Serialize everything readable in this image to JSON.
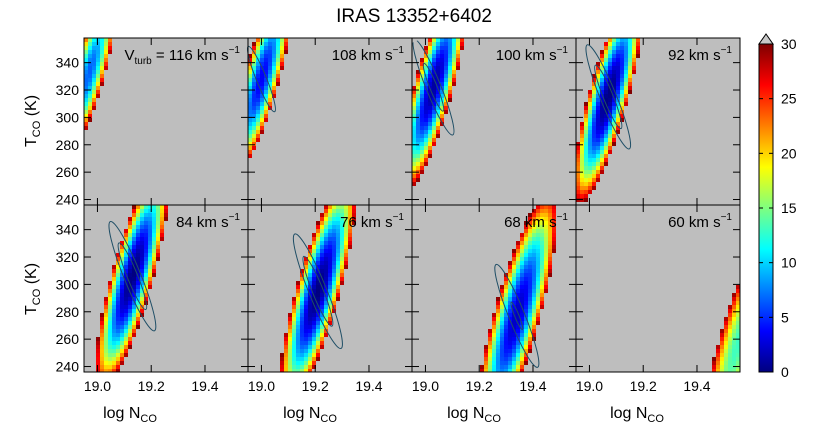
{
  "title": "IRAS 13352+6402",
  "chart_data": {
    "type": "heatmap",
    "title": "IRAS 13352+6402",
    "xlabel": {
      "main": "log N",
      "sub": "CO"
    },
    "ylabel": {
      "main": "T",
      "sub": "CO",
      "unit": " (K)"
    },
    "xlim": [
      18.95,
      19.56
    ],
    "ylim": [
      236,
      358
    ],
    "xticks": [
      19.0,
      19.2,
      19.4
    ],
    "xtick_labels": [
      "19.0",
      "19.2",
      "19.4"
    ],
    "yticks": [
      240,
      260,
      280,
      300,
      320,
      340
    ],
    "ytick_labels": [
      "240",
      "260",
      "280",
      "300",
      "320",
      "340"
    ],
    "grid": false,
    "colorbar": {
      "range": [
        0,
        30
      ],
      "ticks": [
        0,
        5,
        10,
        15,
        20,
        25,
        30
      ],
      "tick_labels": [
        "0",
        "5",
        "10",
        "15",
        "20",
        "25",
        "30"
      ],
      "colormap": [
        "#00007f",
        "#0000ff",
        "#007fff",
        "#00ffff",
        "#7fff7f",
        "#ffff00",
        "#ff7f00",
        "#ff0000",
        "#7f0000"
      ],
      "overflow_color": "#c8c8c8",
      "background_color": "#bebebe"
    },
    "contour_levels": [
      2.3,
      6.2
    ],
    "contour_color": "#1f4e66",
    "vturb_label": {
      "main": "V",
      "sub": "turb",
      "eq": " = "
    },
    "panels": [
      {
        "vturb": 116,
        "label": "116 km s",
        "unit_sup": "−1",
        "center_logN": 18.97,
        "center_T": 333,
        "min_value": 6.5,
        "scale": 0.9
      },
      {
        "vturb": 108,
        "label": "108 km s",
        "unit_sup": "−1",
        "center_logN": 19.0,
        "center_T": 328,
        "min_value": 3.5,
        "scale": 0.95
      },
      {
        "vturb": 100,
        "label": "100 km s",
        "unit_sup": "−1",
        "center_logN": 19.03,
        "center_T": 322,
        "min_value": 1.0,
        "scale": 1.0
      },
      {
        "vturb": 92,
        "label": "92 km s",
        "unit_sup": "−1",
        "center_logN": 19.07,
        "center_T": 315,
        "min_value": 0.0,
        "scale": 1.0
      },
      {
        "vturb": 84,
        "label": "84 km s",
        "unit_sup": "−1",
        "center_logN": 19.13,
        "center_T": 306,
        "min_value": 0.0,
        "scale": 1.05
      },
      {
        "vturb": 76,
        "label": "76 km s",
        "unit_sup": "−1",
        "center_logN": 19.21,
        "center_T": 295,
        "min_value": 0.0,
        "scale": 1.1
      },
      {
        "vturb": 68,
        "label": "68 km s",
        "unit_sup": "−1",
        "center_logN": 19.34,
        "center_T": 277,
        "min_value": 2.0,
        "scale": 1.2
      },
      {
        "vturb": 60,
        "label": "60 km s",
        "unit_sup": "−1",
        "center_logN": 19.55,
        "center_T": 255,
        "min_value": 13.0,
        "scale": 1.3
      }
    ]
  }
}
